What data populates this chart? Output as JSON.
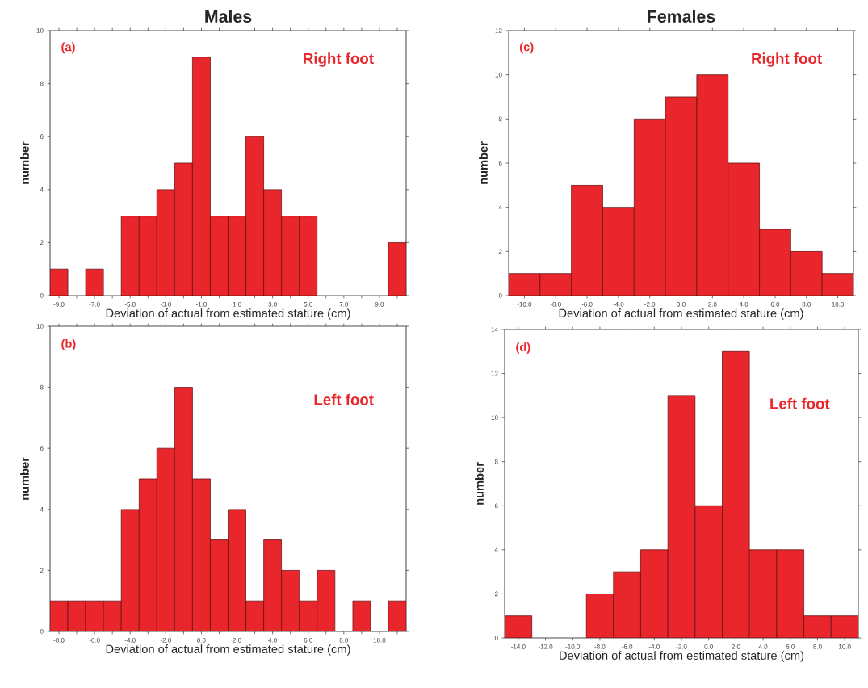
{
  "chart_data": [
    {
      "type": "histogram",
      "title": "Males",
      "xlabel": "Deviation of actual from estimated stature (cm)",
      "ylabel": "number",
      "color": "#e8262b",
      "bins": [
        -9.5,
        -8.5,
        -7.5,
        -6.5,
        -5.5,
        -4.5,
        -3.5,
        -2.5,
        -1.5,
        -0.5,
        0.5,
        1.5,
        2.5,
        3.5,
        4.5,
        5.5,
        6.5,
        7.5,
        8.5,
        9.5,
        10.5
      ],
      "values": [
        1,
        0,
        1,
        0,
        3,
        3,
        4,
        5,
        9,
        3,
        3,
        6,
        4,
        3,
        3,
        0,
        0,
        0,
        0,
        2
      ],
      "xlim": [
        -9.5,
        10.5
      ],
      "ylim": [
        0,
        10
      ],
      "yticks": [
        0,
        2,
        4,
        6,
        8,
        10
      ],
      "xticks": [
        {
          "value": -9,
          "label": "-9.0"
        },
        {
          "value": -8,
          "label": null
        },
        {
          "value": -7,
          "label": "-7.0"
        },
        {
          "value": -6,
          "label": null
        },
        {
          "value": -5,
          "label": "-5.0"
        },
        {
          "value": -4,
          "label": null
        },
        {
          "value": -3,
          "label": "-3.0"
        },
        {
          "value": -2,
          "label": null
        },
        {
          "value": -1,
          "label": "-1.0"
        },
        {
          "value": 0,
          "label": null
        },
        {
          "value": 1,
          "label": "1.0"
        },
        {
          "value": 2,
          "label": null
        },
        {
          "value": 3,
          "label": "3.0"
        },
        {
          "value": 4,
          "label": null
        },
        {
          "value": 5,
          "label": "5.0"
        },
        {
          "value": 6,
          "label": null
        },
        {
          "value": 7,
          "label": "7.0"
        },
        {
          "value": 8,
          "label": null
        },
        {
          "value": 9,
          "label": "9.0"
        },
        {
          "value": 10,
          "label": null
        }
      ],
      "annotations": [
        "(a)",
        "Right foot"
      ]
    },
    {
      "type": "histogram",
      "title": "Females",
      "xlabel": "Deviation of actual from estimated stature (cm)",
      "ylabel": "number",
      "color": "#e8262b",
      "bins": [
        -11,
        -9,
        -7,
        -5,
        -3,
        -1,
        1,
        3,
        5,
        7,
        9,
        11
      ],
      "values": [
        1,
        1,
        5,
        4,
        8,
        9,
        10,
        6,
        3,
        2,
        1
      ],
      "xlim": [
        -11,
        11
      ],
      "ylim": [
        0,
        12
      ],
      "yticks": [
        0,
        2,
        4,
        6,
        8,
        10,
        12
      ],
      "xticks": [
        {
          "value": -10,
          "label": "-10.0"
        },
        {
          "value": -8,
          "label": "-8.0"
        },
        {
          "value": -6,
          "label": "-6.0"
        },
        {
          "value": -4,
          "label": "-4.0"
        },
        {
          "value": -2,
          "label": "-2.0"
        },
        {
          "value": 0,
          "label": "0.0"
        },
        {
          "value": 2,
          "label": "2.0"
        },
        {
          "value": 4,
          "label": "4.0"
        },
        {
          "value": 6,
          "label": "6.0"
        },
        {
          "value": 8,
          "label": "8.0"
        },
        {
          "value": 10,
          "label": "10.0"
        }
      ],
      "annotations": [
        "(c)",
        "Right foot"
      ]
    },
    {
      "type": "histogram",
      "xlabel": "Deviation of actual from estimated stature (cm)",
      "ylabel": "number",
      "color": "#e8262b",
      "bins": [
        -8.5,
        -7.5,
        -6.5,
        -5.5,
        -4.5,
        -3.5,
        -2.5,
        -1.5,
        -0.5,
        0.5,
        1.5,
        2.5,
        3.5,
        4.5,
        5.5,
        6.5,
        7.5,
        8.5,
        9.5,
        10.5,
        11.5
      ],
      "values": [
        1,
        1,
        1,
        1,
        4,
        5,
        6,
        8,
        5,
        3,
        4,
        1,
        3,
        2,
        1,
        2,
        0,
        1,
        0,
        1
      ],
      "xlim": [
        -8.5,
        11.5
      ],
      "ylim": [
        0,
        10
      ],
      "yticks": [
        0,
        2,
        4,
        6,
        8,
        10
      ],
      "xticks": [
        {
          "value": -8,
          "label": "-8.0"
        },
        {
          "value": -7,
          "label": null
        },
        {
          "value": -6,
          "label": "-6.0"
        },
        {
          "value": -5,
          "label": null
        },
        {
          "value": -4,
          "label": "-4.0"
        },
        {
          "value": -3,
          "label": null
        },
        {
          "value": -2,
          "label": "-2.0"
        },
        {
          "value": -1,
          "label": null
        },
        {
          "value": 0,
          "label": "0.0"
        },
        {
          "value": 1,
          "label": null
        },
        {
          "value": 2,
          "label": "2.0"
        },
        {
          "value": 3,
          "label": null
        },
        {
          "value": 4,
          "label": "4.0"
        },
        {
          "value": 5,
          "label": null
        },
        {
          "value": 6,
          "label": "6.0"
        },
        {
          "value": 7,
          "label": null
        },
        {
          "value": 8,
          "label": "8.0"
        },
        {
          "value": 9,
          "label": null
        },
        {
          "value": 10,
          "label": "10.0"
        },
        {
          "value": 11,
          "label": null
        }
      ],
      "annotations": [
        "(b)",
        "Left foot"
      ]
    },
    {
      "type": "histogram",
      "xlabel": "Deviation of actual from estimated stature (cm)",
      "ylabel": "number",
      "color": "#e8262b",
      "bins": [
        -15,
        -13,
        -11,
        -9,
        -7,
        -5,
        -3,
        -1,
        1,
        3,
        5,
        7,
        9,
        11
      ],
      "values": [
        1,
        0,
        0,
        2,
        3,
        4,
        11,
        6,
        13,
        4,
        4,
        1,
        1
      ],
      "xlim": [
        -15,
        11
      ],
      "ylim": [
        0,
        14
      ],
      "yticks": [
        0,
        2,
        4,
        6,
        8,
        10,
        12,
        14
      ],
      "xticks": [
        {
          "value": -14,
          "label": "-14.0"
        },
        {
          "value": -12,
          "label": "-12.0"
        },
        {
          "value": -10,
          "label": "-10.0"
        },
        {
          "value": -8,
          "label": "-8.0"
        },
        {
          "value": -6,
          "label": "-6.0"
        },
        {
          "value": -4,
          "label": "-4.0"
        },
        {
          "value": -2,
          "label": "-2.0"
        },
        {
          "value": 0,
          "label": "0.0"
        },
        {
          "value": 2,
          "label": "2.0"
        },
        {
          "value": 4,
          "label": "4.0"
        },
        {
          "value": 6,
          "label": "6.0"
        },
        {
          "value": 8,
          "label": "8.0"
        },
        {
          "value": 10,
          "label": "10.0"
        }
      ],
      "annotations": [
        "(d)",
        "Left foot"
      ]
    }
  ]
}
